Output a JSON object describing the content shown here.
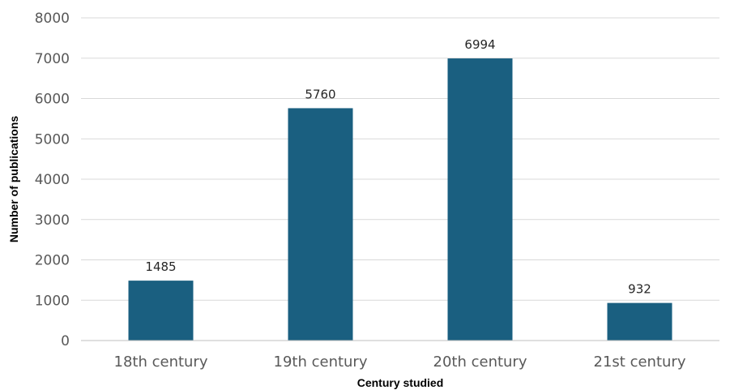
{
  "chart_data": {
    "type": "bar",
    "title": "",
    "xlabel": "Century studied",
    "ylabel": "Number of publications",
    "categories": [
      "18th century",
      "19th century",
      "20th century",
      "21st century"
    ],
    "values": [
      1485,
      5760,
      6994,
      932
    ],
    "data_labels": [
      "1485",
      "5760",
      "6994",
      "932"
    ],
    "ylim": [
      0,
      8000
    ],
    "yticks": [
      0,
      1000,
      2000,
      3000,
      4000,
      5000,
      6000,
      7000,
      8000
    ],
    "ytick_labels": [
      "0",
      "1000",
      "2000",
      "3000",
      "4000",
      "5000",
      "6000",
      "7000",
      "8000"
    ],
    "grid": true,
    "legend": "none",
    "bar_color": "#1a5f80"
  }
}
